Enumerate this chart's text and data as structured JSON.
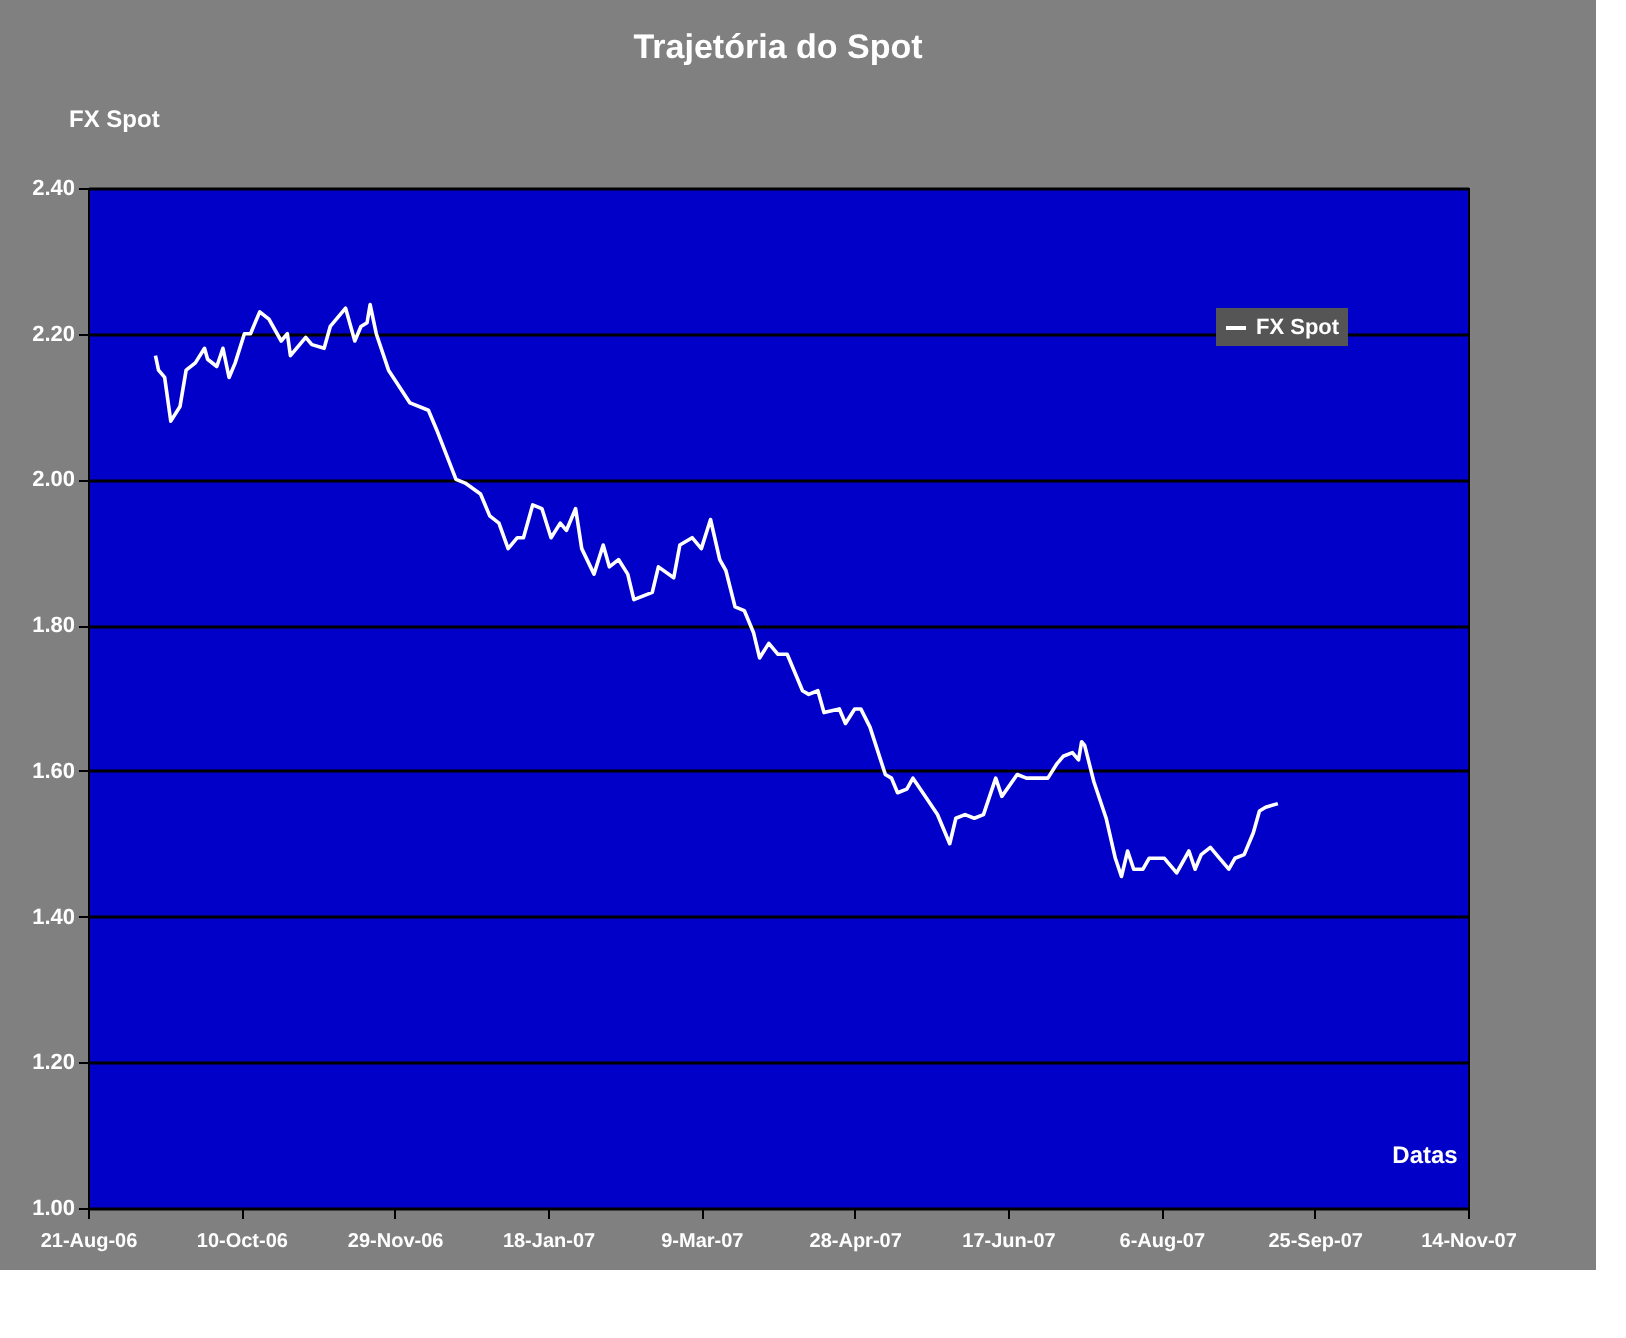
{
  "chart_data": {
    "type": "line",
    "title": "Trajetória do Spot",
    "xlabel": "Datas",
    "ylabel": "FX Spot",
    "x": [
      "2006-09-12",
      "2006-09-13",
      "2006-09-15",
      "2006-09-17",
      "2006-09-20",
      "2006-09-22",
      "2006-09-25",
      "2006-09-28",
      "2006-09-29",
      "2006-10-02",
      "2006-10-04",
      "2006-10-06",
      "2006-10-08",
      "2006-10-11",
      "2006-10-13",
      "2006-10-16",
      "2006-10-19",
      "2006-10-23",
      "2006-10-25",
      "2006-10-26",
      "2006-10-31",
      "2006-11-02",
      "2006-11-06",
      "2006-11-08",
      "2006-11-13",
      "2006-11-16",
      "2006-11-18",
      "2006-11-20",
      "2006-11-21",
      "2006-11-23",
      "2006-11-27",
      "2006-12-04",
      "2006-12-10",
      "2006-12-13",
      "2006-12-19",
      "2006-12-22",
      "2006-12-27",
      "2006-12-30",
      "2007-01-02",
      "2007-01-05",
      "2007-01-08",
      "2007-01-10",
      "2007-01-13",
      "2007-01-16",
      "2007-01-19",
      "2007-01-22",
      "2007-01-24",
      "2007-01-27",
      "2007-01-29",
      "2007-02-02",
      "2007-02-05",
      "2007-02-07",
      "2007-02-10",
      "2007-02-13",
      "2007-02-15",
      "2007-02-21",
      "2007-02-23",
      "2007-02-28",
      "2007-03-02",
      "2007-03-06",
      "2007-03-09",
      "2007-03-12",
      "2007-03-15",
      "2007-03-17",
      "2007-03-20",
      "2007-03-23",
      "2007-03-26",
      "2007-03-28",
      "2007-03-31",
      "2007-04-03",
      "2007-04-06",
      "2007-04-11",
      "2007-04-13",
      "2007-04-16",
      "2007-04-18",
      "2007-04-23",
      "2007-04-25",
      "2007-04-28",
      "2007-04-30",
      "2007-05-03",
      "2007-05-08",
      "2007-05-10",
      "2007-05-12",
      "2007-05-15",
      "2007-05-17",
      "2007-05-21",
      "2007-05-25",
      "2007-05-29",
      "2007-05-31",
      "2007-06-03",
      "2007-06-06",
      "2007-06-09",
      "2007-06-13",
      "2007-06-15",
      "2007-06-20",
      "2007-06-23",
      "2007-06-27",
      "2007-06-30",
      "2007-07-03",
      "2007-07-05",
      "2007-07-08",
      "2007-07-10",
      "2007-07-11",
      "2007-07-12",
      "2007-07-15",
      "2007-07-19",
      "2007-07-22",
      "2007-07-24",
      "2007-07-26",
      "2007-07-28",
      "2007-07-31",
      "2007-08-02",
      "2007-08-07",
      "2007-08-11",
      "2007-08-15",
      "2007-08-17",
      "2007-08-19",
      "2007-08-22",
      "2007-08-25",
      "2007-08-28",
      "2007-08-30",
      "2007-09-02",
      "2007-09-05",
      "2007-09-07",
      "2007-09-09",
      "2007-09-13"
    ],
    "series": [
      {
        "name": "FX Spot",
        "color": "#ffffff",
        "values": [
          2.17,
          2.15,
          2.14,
          2.08,
          2.1,
          2.15,
          2.16,
          2.18,
          2.165,
          2.155,
          2.18,
          2.14,
          2.16,
          2.2,
          2.2,
          2.23,
          2.22,
          2.19,
          2.2,
          2.17,
          2.195,
          2.185,
          2.18,
          2.21,
          2.235,
          2.19,
          2.21,
          2.215,
          2.24,
          2.2,
          2.15,
          2.105,
          2.095,
          2.065,
          2.0,
          1.995,
          1.98,
          1.95,
          1.94,
          1.905,
          1.92,
          1.92,
          1.965,
          1.96,
          1.92,
          1.94,
          1.93,
          1.96,
          1.905,
          1.87,
          1.91,
          1.88,
          1.89,
          1.87,
          1.835,
          1.845,
          1.88,
          1.865,
          1.91,
          1.92,
          1.905,
          1.945,
          1.89,
          1.875,
          1.825,
          1.82,
          1.79,
          1.755,
          1.775,
          1.76,
          1.76,
          1.71,
          1.705,
          1.71,
          1.68,
          1.685,
          1.665,
          1.685,
          1.685,
          1.66,
          1.595,
          1.59,
          1.57,
          1.575,
          1.59,
          1.565,
          1.54,
          1.5,
          1.535,
          1.54,
          1.535,
          1.54,
          1.59,
          1.565,
          1.595,
          1.59,
          1.59,
          1.59,
          1.61,
          1.62,
          1.625,
          1.615,
          1.64,
          1.635,
          1.585,
          1.535,
          1.48,
          1.455,
          1.49,
          1.465,
          1.465,
          1.48,
          1.48,
          1.46,
          1.49,
          1.465,
          1.485,
          1.495,
          1.48,
          1.465,
          1.48,
          1.485,
          1.515,
          1.545,
          1.55,
          1.555
        ]
      }
    ],
    "xlim": [
      "2006-08-21",
      "2007-11-14"
    ],
    "xticks": [
      {
        "value": "2006-08-21",
        "label": "21-Aug-06"
      },
      {
        "value": "2006-10-10",
        "label": "10-Oct-06"
      },
      {
        "value": "2006-11-29",
        "label": "29-Nov-06"
      },
      {
        "value": "2007-01-18",
        "label": "18-Jan-07"
      },
      {
        "value": "2007-03-09",
        "label": "9-Mar-07"
      },
      {
        "value": "2007-04-28",
        "label": "28-Apr-07"
      },
      {
        "value": "2007-06-17",
        "label": "17-Jun-07"
      },
      {
        "value": "2007-08-06",
        "label": "6-Aug-07"
      },
      {
        "value": "2007-09-25",
        "label": "25-Sep-07"
      },
      {
        "value": "2007-11-14",
        "label": "14-Nov-07"
      }
    ],
    "ylim": [
      1.0,
      2.4
    ],
    "yticks": [
      {
        "value": 1.0,
        "label": "1.00"
      },
      {
        "value": 1.2,
        "label": "1.20"
      },
      {
        "value": 1.4,
        "label": "1.40"
      },
      {
        "value": 1.6,
        "label": "1.60"
      },
      {
        "value": 1.8,
        "label": "1.80"
      },
      {
        "value": 2.0,
        "label": "2.00"
      },
      {
        "value": 2.2,
        "label": "2.20"
      },
      {
        "value": 2.4,
        "label": "2.40"
      }
    ],
    "grid": "y",
    "legend": "top right",
    "marker": "none",
    "line_style": "solid"
  }
}
